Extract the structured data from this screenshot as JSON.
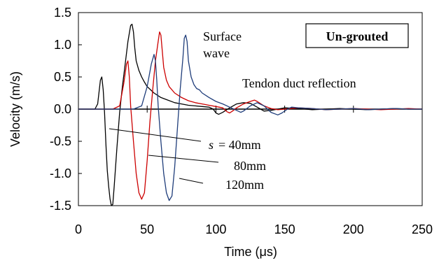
{
  "chart_data": {
    "type": "line",
    "xlabel": "Time (μs)",
    "ylabel": "Velocity (m/s)",
    "xlim": [
      0,
      250
    ],
    "ylim": [
      -1.5,
      1.5
    ],
    "x_ticks": [
      "0",
      "50",
      "100",
      "150",
      "200",
      "250"
    ],
    "y_ticks": [
      "1.5",
      "1.0",
      "0.5",
      "0.0",
      "-0.5",
      "-1.0",
      "-1.5"
    ],
    "grid": false,
    "boxed_label": "Un-grouted",
    "annotations": {
      "surface_wave_line1": "Surface",
      "surface_wave_line2": "wave",
      "tendon": "Tendon duct reflection",
      "s_italic": "s",
      "s40": "= 40mm",
      "s80": "80mm",
      "s120": "120mm"
    },
    "series": [
      {
        "color": "#000000",
        "points": [
          [
            0,
            0
          ],
          [
            12,
            0
          ],
          [
            14,
            0.08
          ],
          [
            16,
            0.45
          ],
          [
            17,
            0.5
          ],
          [
            18,
            0.3
          ],
          [
            19,
            -0.05
          ],
          [
            20,
            -0.55
          ],
          [
            21,
            -0.95
          ],
          [
            22,
            -1.2
          ],
          [
            23,
            -1.4
          ],
          [
            24,
            -1.5
          ],
          [
            25,
            -1.48
          ],
          [
            26,
            -1.2
          ],
          [
            28,
            -0.6
          ],
          [
            30,
            -0.05
          ],
          [
            32,
            0.35
          ],
          [
            34,
            0.7
          ],
          [
            36,
            1.05
          ],
          [
            38,
            1.3
          ],
          [
            39,
            1.32
          ],
          [
            40,
            1.2
          ],
          [
            41,
            0.95
          ],
          [
            42,
            0.75
          ],
          [
            44,
            0.6
          ],
          [
            46,
            0.5
          ],
          [
            48,
            0.42
          ],
          [
            50,
            0.35
          ],
          [
            55,
            0.25
          ],
          [
            60,
            0.18
          ],
          [
            65,
            0.14
          ],
          [
            70,
            0.1
          ],
          [
            75,
            0.08
          ],
          [
            80,
            0.06
          ],
          [
            85,
            0.05
          ],
          [
            90,
            0.04
          ],
          [
            95,
            0.03
          ],
          [
            98,
            0.0
          ],
          [
            100,
            -0.06
          ],
          [
            102,
            -0.08
          ],
          [
            105,
            -0.05
          ],
          [
            110,
            0.02
          ],
          [
            115,
            0.08
          ],
          [
            120,
            0.1
          ],
          [
            125,
            0.09
          ],
          [
            130,
            0.03
          ],
          [
            135,
            -0.03
          ],
          [
            140,
            -0.02
          ],
          [
            145,
            0.0
          ],
          [
            150,
            0.02
          ],
          [
            160,
            0.01
          ],
          [
            170,
            -0.01
          ],
          [
            180,
            0.0
          ],
          [
            190,
            0.01
          ],
          [
            200,
            0.0
          ],
          [
            210,
            -0.01
          ],
          [
            220,
            0.0
          ],
          [
            230,
            0.01
          ],
          [
            240,
            0.0
          ],
          [
            250,
            0.0
          ]
        ]
      },
      {
        "color": "#cc0000",
        "points": [
          [
            0,
            0
          ],
          [
            25,
            0
          ],
          [
            30,
            0.05
          ],
          [
            33,
            0.4
          ],
          [
            35,
            0.7
          ],
          [
            36,
            0.75
          ],
          [
            37,
            0.5
          ],
          [
            38,
            0.05
          ],
          [
            40,
            -0.5
          ],
          [
            42,
            -1.0
          ],
          [
            44,
            -1.3
          ],
          [
            46,
            -1.4
          ],
          [
            48,
            -1.3
          ],
          [
            50,
            -0.8
          ],
          [
            52,
            -0.2
          ],
          [
            54,
            0.3
          ],
          [
            56,
            0.75
          ],
          [
            58,
            1.05
          ],
          [
            59,
            1.2
          ],
          [
            60,
            1.15
          ],
          [
            61,
            0.9
          ],
          [
            62,
            0.65
          ],
          [
            64,
            0.45
          ],
          [
            66,
            0.35
          ],
          [
            70,
            0.25
          ],
          [
            75,
            0.18
          ],
          [
            80,
            0.13
          ],
          [
            85,
            0.1
          ],
          [
            90,
            0.08
          ],
          [
            95,
            0.06
          ],
          [
            100,
            0.04
          ],
          [
            105,
            0.02
          ],
          [
            108,
            -0.04
          ],
          [
            110,
            -0.06
          ],
          [
            112,
            -0.03
          ],
          [
            115,
            0.02
          ],
          [
            120,
            0.08
          ],
          [
            125,
            0.12
          ],
          [
            128,
            0.14
          ],
          [
            130,
            0.12
          ],
          [
            135,
            0.05
          ],
          [
            140,
            0.01
          ],
          [
            145,
            -0.01
          ],
          [
            150,
            0.0
          ],
          [
            160,
            0.02
          ],
          [
            170,
            0.01
          ],
          [
            180,
            -0.01
          ],
          [
            190,
            0.0
          ],
          [
            200,
            0.01
          ],
          [
            210,
            0.0
          ],
          [
            220,
            -0.01
          ],
          [
            230,
            0.0
          ],
          [
            240,
            0.01
          ],
          [
            250,
            0.0
          ]
        ]
      },
      {
        "color": "#1f3d7a",
        "points": [
          [
            0,
            0
          ],
          [
            40,
            0
          ],
          [
            46,
            0.05
          ],
          [
            50,
            0.35
          ],
          [
            53,
            0.7
          ],
          [
            55,
            0.85
          ],
          [
            56,
            0.75
          ],
          [
            57,
            0.45
          ],
          [
            58,
            0.05
          ],
          [
            60,
            -0.5
          ],
          [
            62,
            -1.0
          ],
          [
            64,
            -1.3
          ],
          [
            66,
            -1.42
          ],
          [
            68,
            -1.35
          ],
          [
            70,
            -0.9
          ],
          [
            72,
            -0.3
          ],
          [
            74,
            0.3
          ],
          [
            76,
            0.8
          ],
          [
            77,
            1.1
          ],
          [
            78,
            1.15
          ],
          [
            79,
            1.05
          ],
          [
            80,
            0.75
          ],
          [
            82,
            0.5
          ],
          [
            84,
            0.38
          ],
          [
            86,
            0.32
          ],
          [
            88,
            0.3
          ],
          [
            90,
            0.25
          ],
          [
            95,
            0.18
          ],
          [
            100,
            0.12
          ],
          [
            105,
            0.08
          ],
          [
            110,
            0.03
          ],
          [
            115,
            -0.02
          ],
          [
            118,
            -0.05
          ],
          [
            120,
            -0.03
          ],
          [
            125,
            0.05
          ],
          [
            130,
            0.1
          ],
          [
            135,
            0.05
          ],
          [
            140,
            -0.05
          ],
          [
            145,
            -0.09
          ],
          [
            148,
            -0.06
          ],
          [
            152,
            0.0
          ],
          [
            155,
            0.03
          ],
          [
            160,
            0.02
          ],
          [
            170,
            0.01
          ],
          [
            180,
            -0.01
          ],
          [
            190,
            0.0
          ],
          [
            200,
            0.01
          ],
          [
            210,
            -0.01
          ],
          [
            220,
            0.0
          ],
          [
            230,
            0.01
          ],
          [
            240,
            0.0
          ],
          [
            250,
            0.0
          ]
        ]
      }
    ]
  }
}
